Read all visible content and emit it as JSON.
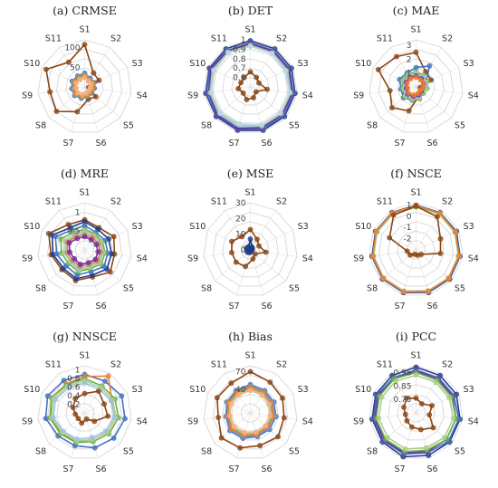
{
  "chart_data": [
    {
      "type": "radar",
      "title": "(a) CRMSE",
      "categories": [
        "S1",
        "S2",
        "S3",
        "S4",
        "S5",
        "S6",
        "S7",
        "S8",
        "S9",
        "S10",
        "S11"
      ],
      "ticks": [
        "50",
        "100"
      ],
      "rmax": 120,
      "series": [
        {
          "color": "#8B4513",
          "values": [
            108,
            42,
            40,
            10,
            38,
            33,
            66,
            95,
            89,
            108,
            75
          ]
        },
        {
          "color": "#4472C4",
          "values": [
            35,
            26,
            27,
            25,
            24,
            26,
            30,
            34,
            33,
            35,
            33
          ]
        },
        {
          "color": "#5B9BD5",
          "values": [
            33,
            24,
            23,
            21,
            20,
            23,
            28,
            33,
            31,
            33,
            30
          ]
        },
        {
          "color": "#70AD47",
          "values": [
            30,
            22,
            24,
            22,
            21,
            24,
            26,
            29,
            28,
            30,
            28
          ]
        },
        {
          "color": "#A9D18E",
          "values": [
            27,
            20,
            21,
            18,
            17,
            19,
            23,
            26,
            25,
            27,
            25
          ]
        },
        {
          "color": "#9DC3E6",
          "values": [
            25,
            18,
            19,
            16,
            15,
            17,
            21,
            24,
            23,
            25,
            23
          ]
        },
        {
          "color": "#ED7D31",
          "values": [
            28,
            21,
            22,
            20,
            19,
            21,
            24,
            28,
            27,
            29,
            26
          ]
        },
        {
          "color": "#F4B183",
          "values": [
            24,
            17,
            18,
            15,
            14,
            16,
            20,
            23,
            22,
            24,
            22
          ]
        }
      ]
    },
    {
      "type": "radar",
      "title": "(b) DET",
      "categories": [
        "S1",
        "S2",
        "S3",
        "S4",
        "S5",
        "S6",
        "S7",
        "S8",
        "S9",
        "S10",
        "S11"
      ],
      "ticks": [
        "0.6",
        "0.7",
        "0.8",
        "0.9",
        "1"
      ],
      "rmin": 0.5,
      "rmax": 1.0,
      "series": [
        {
          "color": "#1F3C88",
          "values": [
            0.99,
            0.98,
            0.98,
            0.98,
            0.98,
            0.98,
            0.98,
            0.98,
            0.98,
            0.98,
            0.98
          ]
        },
        {
          "color": "#4472C4",
          "values": [
            0.97,
            0.96,
            0.96,
            0.96,
            0.97,
            0.96,
            0.97,
            0.97,
            0.97,
            0.97,
            0.96
          ]
        },
        {
          "color": "#70AD47",
          "values": [
            0.95,
            0.95,
            0.94,
            0.95,
            0.95,
            0.95,
            0.94,
            0.95,
            0.95,
            0.95,
            0.95
          ]
        },
        {
          "color": "#9DC3E6",
          "values": [
            0.95,
            0.94,
            0.93,
            0.94,
            0.94,
            0.94,
            0.94,
            0.94,
            0.94,
            0.94,
            0.95
          ]
        },
        {
          "color": "#7030A0",
          "values": [
            0.96,
            0.95,
            0.95,
            0.95,
            0.95,
            0.95,
            0.96,
            0.96,
            0.95,
            0.96,
            0.95
          ]
        },
        {
          "color": "#A9D18E",
          "values": [
            0.94,
            0.93,
            0.92,
            0.93,
            0.93,
            0.93,
            0.92,
            0.93,
            0.93,
            0.93,
            0.94
          ]
        },
        {
          "color": "#BDD7EE",
          "values": [
            0.93,
            0.92,
            0.91,
            0.92,
            0.92,
            0.92,
            0.91,
            0.92,
            0.92,
            0.92,
            0.93
          ]
        },
        {
          "color": "#8B4513",
          "values": [
            0.66,
            0.62,
            0.6,
            0.68,
            0.58,
            0.62,
            0.64,
            0.6,
            0.63,
            0.61,
            0.62
          ]
        }
      ]
    },
    {
      "type": "radar",
      "title": "(c) MAE",
      "categories": [
        "S1",
        "S2",
        "S3",
        "S4",
        "S5",
        "S6",
        "S7",
        "S8",
        "S9",
        "S10",
        "S11"
      ],
      "ticks": [
        "1",
        "2",
        "3"
      ],
      "rmax": 3.4,
      "series": [
        {
          "color": "#8B4513",
          "values": [
            2.5,
            1.3,
            1.2,
            0.3,
            0.6,
            0.7,
            1.8,
            2.3,
            1.9,
            3.0,
            2.6
          ]
        },
        {
          "color": "#4472C4",
          "values": [
            1.4,
            1.8,
            0.8,
            0.7,
            0.6,
            0.8,
            1.0,
            1.2,
            1.1,
            1.3,
            1.2
          ]
        },
        {
          "color": "#70AD47",
          "values": [
            1.1,
            1.0,
            0.9,
            0.8,
            0.7,
            0.9,
            1.0,
            1.1,
            1.0,
            1.1,
            1.1
          ]
        },
        {
          "color": "#A9D18E",
          "values": [
            1.0,
            0.9,
            0.8,
            0.7,
            0.6,
            0.8,
            0.9,
            1.0,
            0.9,
            1.0,
            1.0
          ]
        },
        {
          "color": "#9DC3E6",
          "values": [
            0.9,
            0.8,
            0.7,
            0.6,
            0.5,
            0.7,
            0.8,
            0.9,
            0.8,
            0.9,
            0.9
          ]
        },
        {
          "color": "#7030A0",
          "values": [
            0.8,
            0.7,
            0.6,
            0.5,
            0.5,
            0.6,
            0.7,
            0.8,
            0.7,
            0.8,
            0.8
          ]
        },
        {
          "color": "#ED7D31",
          "values": [
            0.7,
            0.6,
            0.6,
            0.5,
            0.4,
            0.5,
            0.6,
            0.7,
            0.6,
            0.7,
            0.7
          ]
        }
      ]
    },
    {
      "type": "radar",
      "title": "(d) MRE",
      "categories": [
        "S1",
        "S2",
        "S3",
        "S4",
        "S5",
        "S6",
        "S7",
        "S8",
        "S9",
        "S10",
        "S11"
      ],
      "ticks": [
        "0.5",
        "1"
      ],
      "rmax": 1.25,
      "series": [
        {
          "color": "#8B4513",
          "values": [
            0.8,
            0.7,
            0.85,
            0.8,
            0.9,
            0.75,
            0.85,
            0.8,
            0.9,
            1.05,
            0.8
          ]
        },
        {
          "color": "#1F3C88",
          "values": [
            0.75,
            0.65,
            0.7,
            0.72,
            0.78,
            0.7,
            0.8,
            0.75,
            0.85,
            0.95,
            0.7
          ]
        },
        {
          "color": "#4472C4",
          "values": [
            0.65,
            0.55,
            0.6,
            0.62,
            0.68,
            0.6,
            0.7,
            0.65,
            0.75,
            0.85,
            0.62
          ]
        },
        {
          "color": "#70AD47",
          "values": [
            0.55,
            0.5,
            0.52,
            0.55,
            0.58,
            0.52,
            0.6,
            0.56,
            0.62,
            0.7,
            0.55
          ]
        },
        {
          "color": "#A9D18E",
          "values": [
            0.5,
            0.45,
            0.48,
            0.5,
            0.52,
            0.48,
            0.55,
            0.5,
            0.55,
            0.6,
            0.5
          ]
        },
        {
          "color": "#9DC3E6",
          "values": [
            0.45,
            0.42,
            0.44,
            0.46,
            0.48,
            0.44,
            0.5,
            0.46,
            0.5,
            0.55,
            0.45
          ]
        },
        {
          "color": "#ED7D31",
          "values": [
            0.4,
            0.38,
            0.4,
            0.42,
            0.44,
            0.4,
            0.45,
            0.42,
            0.46,
            0.5,
            0.42
          ]
        },
        {
          "color": "#7030A0",
          "values": [
            0.35,
            0.32,
            0.34,
            0.36,
            0.38,
            0.35,
            0.4,
            0.36,
            0.4,
            0.45,
            0.36
          ]
        }
      ]
    },
    {
      "type": "radar",
      "title": "(e) MSE",
      "categories": [
        "S1",
        "S2",
        "S3",
        "S4",
        "S5",
        "S6",
        "S7",
        "S8",
        "S9",
        "S10",
        "S11"
      ],
      "ticks": [
        "0",
        "10",
        "20",
        "30"
      ],
      "rmax": 30,
      "series": [
        {
          "color": "#8B4513",
          "values": [
            13,
            8,
            6,
            10,
            4,
            6,
            11,
            12,
            12,
            13,
            10
          ]
        },
        {
          "color": "#4472C4",
          "values": [
            3,
            2,
            1.5,
            1,
            1,
            1.5,
            2,
            2.5,
            2.5,
            3,
            2.5
          ]
        },
        {
          "color": "#70AD47",
          "values": [
            2.5,
            1.8,
            1.2,
            1,
            0.8,
            1.2,
            1.8,
            2.2,
            2,
            2.5,
            2
          ]
        },
        {
          "color": "#9DC3E6",
          "values": [
            2,
            1.5,
            1,
            0.8,
            0.7,
            1,
            1.5,
            1.8,
            1.7,
            2,
            1.8
          ]
        },
        {
          "color": "#1F3C88",
          "values": [
            7,
            2,
            1.2,
            1,
            0.8,
            1,
            1.5,
            2,
            1.8,
            2.2,
            2
          ]
        }
      ]
    },
    {
      "type": "radar",
      "title": "(f) NSCE",
      "categories": [
        "S1",
        "S2",
        "S3",
        "S4",
        "S5",
        "S6",
        "S7",
        "S8",
        "S9",
        "S10",
        "S11"
      ],
      "ticks": [
        "-2",
        "-1",
        "0",
        "1"
      ],
      "rmin": -3,
      "rmax": 1.2,
      "series": [
        {
          "color": "#1F3C88",
          "values": [
            0.98,
            0.95,
            0.96,
            0.96,
            0.97,
            0.96,
            0.97,
            0.97,
            0.97,
            0.97,
            0.96
          ]
        },
        {
          "color": "#4472C4",
          "values": [
            0.9,
            0.88,
            0.9,
            0.9,
            0.92,
            0.9,
            0.92,
            0.92,
            0.92,
            0.92,
            0.9
          ]
        },
        {
          "color": "#70AD47",
          "values": [
            0.85,
            0.82,
            0.84,
            0.85,
            0.86,
            0.84,
            0.87,
            0.86,
            0.86,
            0.86,
            0.85
          ]
        },
        {
          "color": "#A9D18E",
          "values": [
            0.8,
            0.78,
            0.8,
            0.8,
            0.82,
            0.8,
            0.82,
            0.82,
            0.82,
            0.82,
            0.8
          ]
        },
        {
          "color": "#ED7D31",
          "values": [
            0.95,
            0.9,
            0.85,
            0.88,
            0.86,
            0.85,
            0.9,
            0.88,
            0.9,
            0.92,
            0.92
          ]
        },
        {
          "color": "#8B4513",
          "values": [
            0.9,
            0.5,
            -0.6,
            -0.8,
            -2.4,
            -2.5,
            -2.6,
            -2.3,
            -2.2,
            -0.4,
            0.7
          ]
        }
      ]
    },
    {
      "type": "radar",
      "title": "(g) NNSCE",
      "categories": [
        "S1",
        "S2",
        "S3",
        "S4",
        "S5",
        "S6",
        "S7",
        "S8",
        "S9",
        "S10",
        "S11"
      ],
      "ticks": [
        "0.2",
        "0.4",
        "0.6",
        "0.8",
        "1"
      ],
      "rmax": 1.1,
      "series": [
        {
          "color": "#4472C4",
          "values": [
            0.9,
            0.88,
            0.95,
            0.95,
            0.9,
            0.85,
            0.8,
            0.82,
            0.92,
            0.95,
            0.9
          ]
        },
        {
          "color": "#ED7D31",
          "values": [
            0.85,
            1.02,
            0.7,
            0.75,
            0.7,
            0.65,
            0.7,
            0.72,
            0.8,
            0.85,
            0.8
          ]
        },
        {
          "color": "#70AD47",
          "values": [
            0.8,
            0.75,
            0.78,
            0.8,
            0.75,
            0.7,
            0.72,
            0.75,
            0.82,
            0.85,
            0.78
          ]
        },
        {
          "color": "#A9D18E",
          "values": [
            0.75,
            0.7,
            0.72,
            0.74,
            0.7,
            0.65,
            0.68,
            0.7,
            0.78,
            0.8,
            0.74
          ]
        },
        {
          "color": "#9DC3E6",
          "values": [
            0.7,
            0.65,
            0.68,
            0.7,
            0.65,
            0.6,
            0.64,
            0.66,
            0.74,
            0.75,
            0.7
          ]
        },
        {
          "color": "#8B4513",
          "values": [
            0.45,
            0.6,
            0.5,
            0.55,
            0.3,
            0.15,
            0.25,
            0.2,
            0.22,
            0.3,
            0.4
          ]
        }
      ]
    },
    {
      "type": "radar",
      "title": "(h) Bias",
      "categories": [
        "S1",
        "S2",
        "S3",
        "S4",
        "S5",
        "S6",
        "S7",
        "S8",
        "S9",
        "S10",
        "S11"
      ],
      "ticks": [
        "40",
        "70"
      ],
      "rmax": 80,
      "series": [
        {
          "color": "#8B4513",
          "values": [
            70,
            62,
            60,
            58,
            62,
            58,
            62,
            65,
            55,
            62,
            60
          ]
        },
        {
          "color": "#4472C4",
          "values": [
            48,
            45,
            44,
            44,
            43,
            42,
            45,
            46,
            42,
            44,
            45
          ]
        },
        {
          "color": "#5B9BD5",
          "values": [
            45,
            42,
            41,
            41,
            40,
            40,
            42,
            43,
            40,
            42,
            43
          ]
        },
        {
          "color": "#70AD47",
          "values": [
            42,
            40,
            38,
            38,
            37,
            37,
            39,
            40,
            38,
            40,
            40
          ]
        },
        {
          "color": "#A9D18E",
          "values": [
            40,
            38,
            36,
            36,
            35,
            35,
            37,
            38,
            36,
            38,
            38
          ]
        },
        {
          "color": "#ED7D31",
          "values": [
            44,
            41,
            39,
            40,
            38,
            38,
            40,
            42,
            39,
            41,
            42
          ]
        },
        {
          "color": "#F4B183",
          "values": [
            38,
            36,
            35,
            34,
            34,
            34,
            35,
            36,
            35,
            36,
            36
          ]
        }
      ]
    },
    {
      "type": "radar",
      "title": "(i) PCC",
      "categories": [
        "S1",
        "S2",
        "S3",
        "S4",
        "S5",
        "S6",
        "S7",
        "S8",
        "S9",
        "S10",
        "S11"
      ],
      "ticks": [
        "0.75",
        "0.85",
        "0.95"
      ],
      "rmin": 0.65,
      "rmax": 1.0,
      "series": [
        {
          "color": "#1F3C88",
          "values": [
            0.99,
            0.98,
            0.98,
            0.98,
            0.98,
            0.98,
            0.99,
            0.98,
            0.98,
            0.98,
            0.98
          ]
        },
        {
          "color": "#4472C4",
          "values": [
            0.97,
            0.96,
            0.96,
            0.97,
            0.97,
            0.96,
            0.97,
            0.97,
            0.97,
            0.97,
            0.96
          ]
        },
        {
          "color": "#7030A0",
          "values": [
            0.96,
            0.95,
            0.95,
            0.95,
            0.95,
            0.95,
            0.96,
            0.96,
            0.96,
            0.96,
            0.95
          ]
        },
        {
          "color": "#70AD47",
          "values": [
            0.95,
            0.94,
            0.94,
            0.95,
            0.95,
            0.94,
            0.95,
            0.95,
            0.95,
            0.95,
            0.95
          ]
        },
        {
          "color": "#A9D18E",
          "values": [
            0.93,
            0.92,
            0.92,
            0.93,
            0.93,
            0.92,
            0.93,
            0.93,
            0.93,
            0.93,
            0.93
          ]
        },
        {
          "color": "#8B4513",
          "values": [
            0.76,
            0.73,
            0.78,
            0.75,
            0.82,
            0.78,
            0.76,
            0.74,
            0.73,
            0.75,
            0.78
          ]
        }
      ]
    }
  ]
}
